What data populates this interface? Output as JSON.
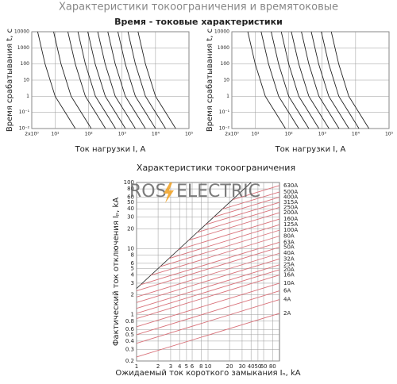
{
  "header": "Характеристики токоограничения и времятоковые",
  "section_title": "Время - токовые характеристики",
  "watermark": {
    "left": "ROS",
    "right": "ELECTRIC"
  },
  "chart_data": [
    {
      "type": "line",
      "xlabel": "Ток нагрузки  I, A",
      "ylabel": "Время срабатывания  t, с",
      "xscale": "log",
      "yscale": "log",
      "grid": true,
      "xlim": [
        2,
        100000
      ],
      "ylim": [
        0.01,
        10000
      ],
      "xticks": [
        {
          "value": 2,
          "label": "2x10⁰"
        },
        {
          "value": 10,
          "label": "10¹"
        },
        {
          "value": 100,
          "label": "10²"
        },
        {
          "value": 1000,
          "label": "10³"
        },
        {
          "value": 10000,
          "label": "10⁴"
        },
        {
          "value": 100000,
          "label": "10⁵"
        }
      ],
      "yticks": [
        {
          "value": 0.01,
          "label": "10⁻²"
        },
        {
          "value": 0.1,
          "label": "10⁻¹"
        },
        1,
        10,
        100,
        1000,
        10000
      ],
      "series": [
        {
          "color": "#222",
          "x": [
            3,
            5,
            10,
            20,
            40
          ],
          "values": [
            10000,
            100,
            1,
            0.1,
            0.01
          ]
        },
        {
          "color": "#222",
          "x": [
            9,
            15,
            30,
            60,
            120
          ],
          "values": [
            10000,
            100,
            1,
            0.1,
            0.01
          ]
        },
        {
          "color": "#222",
          "x": [
            24,
            40,
            80,
            160,
            320
          ],
          "values": [
            10000,
            100,
            1,
            0.1,
            0.01
          ]
        },
        {
          "color": "#222",
          "x": [
            48,
            80,
            160,
            320,
            640
          ],
          "values": [
            10000,
            100,
            1,
            0.1,
            0.01
          ]
        },
        {
          "color": "#222",
          "x": [
            94.5,
            157.5,
            315,
            630,
            1260
          ],
          "values": [
            10000,
            100,
            1,
            0.1,
            0.01
          ]
        },
        {
          "color": "#222",
          "x": [
            187.5,
            312.5,
            625,
            1250,
            2500
          ],
          "values": [
            10000,
            100,
            1,
            0.1,
            0.01
          ]
        },
        {
          "color": "#222",
          "x": [
            375,
            625,
            1250,
            2500,
            5000
          ],
          "values": [
            10000,
            100,
            1,
            0.1,
            0.01
          ]
        },
        {
          "color": "#222",
          "x": [
            750,
            1250,
            2500,
            5000,
            10000
          ],
          "values": [
            10000,
            100,
            1,
            0.1,
            0.01
          ]
        },
        {
          "color": "#222",
          "x": [
            1500,
            2500,
            5000,
            10000,
            20000
          ],
          "values": [
            10000,
            100,
            1,
            0.1,
            0.01
          ]
        },
        {
          "color": "#222",
          "x": [
            3000,
            5000,
            10000,
            20000,
            40000
          ],
          "values": [
            10000,
            100,
            1,
            0.1,
            0.01
          ]
        }
      ]
    },
    {
      "type": "line",
      "xlabel": "Ток нагрузки  I, A",
      "ylabel": "Время срабатывания  t, с",
      "xscale": "log",
      "yscale": "log",
      "grid": true,
      "xlim": [
        2,
        100000
      ],
      "ylim": [
        0.01,
        10000
      ],
      "xticks": [
        {
          "value": 2,
          "label": "2x10⁰"
        },
        {
          "value": 10,
          "label": "10¹"
        },
        {
          "value": 100,
          "label": "10²"
        },
        {
          "value": 1000,
          "label": "10³"
        },
        {
          "value": 10000,
          "label": "10⁴"
        },
        {
          "value": 100000,
          "label": "10⁵"
        }
      ],
      "yticks": [
        {
          "value": 0.01,
          "label": "10⁻²"
        },
        {
          "value": 0.1,
          "label": "10⁻¹"
        },
        1,
        10,
        100,
        1000,
        10000
      ],
      "series": [
        {
          "color": "#222",
          "x": [
            6,
            10,
            20,
            40,
            80
          ],
          "values": [
            10000,
            100,
            1,
            0.1,
            0.01
          ]
        },
        {
          "color": "#222",
          "x": [
            15,
            25,
            50,
            100,
            200
          ],
          "values": [
            10000,
            100,
            1,
            0.1,
            0.01
          ]
        },
        {
          "color": "#222",
          "x": [
            30,
            50,
            100,
            200,
            400
          ],
          "values": [
            10000,
            100,
            1,
            0.1,
            0.01
          ]
        },
        {
          "color": "#222",
          "x": [
            60,
            100,
            200,
            400,
            800
          ],
          "values": [
            10000,
            100,
            1,
            0.1,
            0.01
          ]
        },
        {
          "color": "#222",
          "x": [
            120,
            200,
            400,
            800,
            1600
          ],
          "values": [
            10000,
            100,
            1,
            0.1,
            0.01
          ]
        },
        {
          "color": "#222",
          "x": [
            240,
            400,
            800,
            1600,
            3200
          ],
          "values": [
            10000,
            100,
            1,
            0.1,
            0.01
          ]
        },
        {
          "color": "#222",
          "x": [
            472.5,
            787.5,
            1575,
            3150,
            6300
          ],
          "values": [
            10000,
            100,
            1,
            0.1,
            0.01
          ]
        },
        {
          "color": "#222",
          "x": [
            945,
            1575,
            3150,
            6300,
            12600
          ],
          "values": [
            10000,
            100,
            1,
            0.1,
            0.01
          ]
        },
        {
          "color": "#222",
          "x": [
            1875,
            3125,
            6250,
            12500,
            25000
          ],
          "values": [
            10000,
            100,
            1,
            0.1,
            0.01
          ]
        }
      ]
    },
    {
      "type": "line",
      "title": "Характеристики токоограничения",
      "xlabel": "Ожидаемый ток короткого замыкания  Iₙ, kA",
      "ylabel": "Фактический ток отключения  Iₚ, kA",
      "xscale": "log",
      "yscale": "log",
      "grid": true,
      "xlim": [
        1,
        100
      ],
      "ylim": [
        0.2,
        100
      ],
      "xticks": [
        1,
        2,
        3,
        4,
        5,
        6,
        8,
        10,
        20,
        30,
        40,
        50,
        60,
        80
      ],
      "yticks": [
        0.2,
        0.3,
        0.4,
        0.5,
        0.6,
        0.8,
        1,
        2,
        3,
        4,
        5,
        6,
        8,
        10,
        20,
        30,
        40,
        50,
        60,
        80,
        100
      ],
      "series": [
        {
          "color": "#333",
          "x": [
            1,
            40
          ],
          "values": [
            2.5,
            100
          ]
        },
        {
          "name": "630A",
          "color": "#d9737b",
          "x": [
            22.1,
            100
          ],
          "values": [
            55,
            90
          ]
        },
        {
          "name": "500A",
          "color": "#d9737b",
          "x": [
            15.8,
            100
          ],
          "values": [
            39.5,
            72
          ]
        },
        {
          "name": "400A",
          "color": "#d9737b",
          "x": [
            12,
            100
          ],
          "values": [
            30,
            60
          ]
        },
        {
          "name": "315A",
          "color": "#d9737b",
          "x": [
            9.2,
            100
          ],
          "values": [
            23,
            50
          ]
        },
        {
          "name": "250A",
          "color": "#d9737b",
          "x": [
            7.05,
            100
          ],
          "values": [
            17.6,
            42
          ]
        },
        {
          "name": "200A",
          "color": "#d9737b",
          "x": [
            5.36,
            100
          ],
          "values": [
            13.4,
            35
          ]
        },
        {
          "name": "160A",
          "color": "#d9737b",
          "x": [
            3.84,
            100
          ],
          "values": [
            9.6,
            28
          ]
        },
        {
          "name": "125A",
          "color": "#d9737b",
          "x": [
            2.85,
            100
          ],
          "values": [
            7.1,
            23
          ]
        },
        {
          "name": "100A",
          "color": "#d9737b",
          "x": [
            2.14,
            100
          ],
          "values": [
            5.35,
            19
          ]
        },
        {
          "name": "80A",
          "color": "#d9737b",
          "x": [
            1.58,
            100
          ],
          "values": [
            3.95,
            15.5
          ]
        },
        {
          "name": "63A",
          "color": "#d9737b",
          "x": [
            1.14,
            100
          ],
          "values": [
            2.85,
            12.5
          ]
        },
        {
          "name": "50A",
          "color": "#d9737b",
          "x": [
            1,
            100
          ],
          "values": [
            2.3,
            10.5
          ]
        },
        {
          "name": "40A",
          "color": "#d9737b",
          "x": [
            1,
            100
          ],
          "values": [
            1.86,
            8.5
          ]
        },
        {
          "name": "32A",
          "color": "#d9737b",
          "x": [
            1,
            100
          ],
          "values": [
            1.53,
            7
          ]
        },
        {
          "name": "25A",
          "color": "#d9737b",
          "x": [
            1,
            100
          ],
          "values": [
            1.25,
            5.7
          ]
        },
        {
          "name": "20A",
          "color": "#d9737b",
          "x": [
            1,
            100
          ],
          "values": [
            1.05,
            4.8
          ]
        },
        {
          "name": "16A",
          "color": "#d9737b",
          "x": [
            1,
            100
          ],
          "values": [
            0.875,
            4
          ]
        },
        {
          "name": "10A",
          "color": "#d9737b",
          "x": [
            1,
            100
          ],
          "values": [
            0.66,
            3
          ]
        },
        {
          "name": "6A",
          "color": "#d9737b",
          "x": [
            1,
            100
          ],
          "values": [
            0.5,
            2.3
          ]
        },
        {
          "name": "4A",
          "color": "#d9737b",
          "x": [
            1,
            100
          ],
          "values": [
            0.37,
            1.7
          ]
        },
        {
          "name": "2A",
          "color": "#d9737b",
          "x": [
            1,
            100
          ],
          "values": [
            0.23,
            1.05
          ]
        }
      ]
    }
  ]
}
